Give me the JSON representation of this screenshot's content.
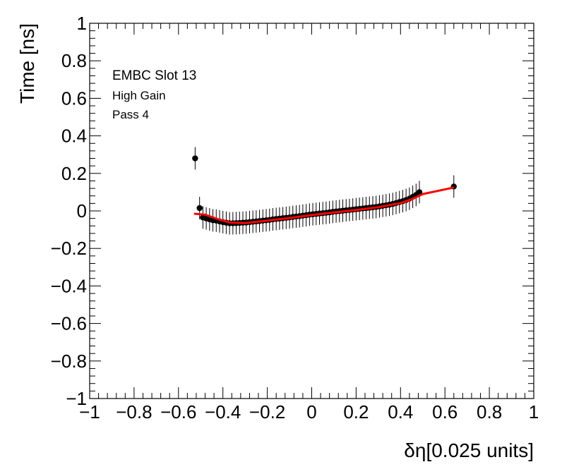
{
  "chart_data": {
    "type": "scatter",
    "xlabel": "δη[0.025 units]",
    "ylabel": "Time [ns]",
    "xlim": [
      -1,
      1
    ],
    "ylim": [
      -1,
      1
    ],
    "xticks": [
      "−1",
      "−0.8",
      "−0.6",
      "−0.4",
      "−0.2",
      "0",
      "0.2",
      "0.4",
      "0.6",
      "0.8",
      "1"
    ],
    "yticks": [
      "−1",
      "−0.8",
      "−0.6",
      "−0.4",
      "−0.2",
      "0",
      "0.2",
      "0.4",
      "0.6",
      "0.8",
      "1"
    ],
    "grid": false,
    "annotations": [
      "EMBC Slot 13",
      "High Gain",
      "Pass 4"
    ],
    "colors": {
      "points": "#000000",
      "fit": "#ff0000"
    },
    "series": [
      {
        "kind": "points_with_error_bars",
        "x": [
          -0.525,
          -0.505,
          -0.49,
          -0.475,
          -0.46,
          -0.445,
          -0.43,
          -0.415,
          -0.4,
          -0.385,
          -0.37,
          -0.355,
          -0.34,
          -0.325,
          -0.31,
          -0.295,
          -0.28,
          -0.265,
          -0.25,
          -0.235,
          -0.22,
          -0.205,
          -0.19,
          -0.175,
          -0.16,
          -0.145,
          -0.13,
          -0.115,
          -0.1,
          -0.085,
          -0.07,
          -0.055,
          -0.04,
          -0.025,
          -0.01,
          0.005,
          0.02,
          0.035,
          0.05,
          0.065,
          0.08,
          0.095,
          0.11,
          0.125,
          0.14,
          0.155,
          0.17,
          0.185,
          0.2,
          0.215,
          0.23,
          0.245,
          0.26,
          0.275,
          0.29,
          0.305,
          0.32,
          0.335,
          0.35,
          0.365,
          0.38,
          0.395,
          0.41,
          0.425,
          0.44,
          0.455,
          0.47,
          0.485,
          0.64
        ],
        "y": [
          0.28,
          0.015,
          -0.035,
          -0.04,
          -0.045,
          -0.05,
          -0.052,
          -0.056,
          -0.06,
          -0.063,
          -0.066,
          -0.066,
          -0.065,
          -0.064,
          -0.063,
          -0.062,
          -0.06,
          -0.058,
          -0.056,
          -0.054,
          -0.052,
          -0.05,
          -0.048,
          -0.045,
          -0.043,
          -0.041,
          -0.039,
          -0.037,
          -0.035,
          -0.032,
          -0.03,
          -0.028,
          -0.025,
          -0.023,
          -0.02,
          -0.018,
          -0.016,
          -0.014,
          -0.012,
          -0.01,
          -0.008,
          -0.005,
          -0.003,
          -0.001,
          0.001,
          0.003,
          0.005,
          0.007,
          0.009,
          0.011,
          0.013,
          0.015,
          0.017,
          0.019,
          0.021,
          0.024,
          0.027,
          0.03,
          0.033,
          0.037,
          0.042,
          0.047,
          0.052,
          0.058,
          0.065,
          0.075,
          0.085,
          0.1,
          0.13
        ],
        "y_err": 0.06
      },
      {
        "kind": "fit_line",
        "x": [
          -0.53,
          -0.48,
          -0.42,
          -0.37,
          -0.3,
          -0.2,
          -0.1,
          0.0,
          0.1,
          0.2,
          0.3,
          0.4,
          0.45,
          0.5,
          0.64
        ],
        "y": [
          -0.015,
          -0.02,
          -0.045,
          -0.062,
          -0.065,
          -0.052,
          -0.038,
          -0.022,
          -0.008,
          0.005,
          0.02,
          0.042,
          0.062,
          0.09,
          0.125
        ]
      }
    ]
  }
}
